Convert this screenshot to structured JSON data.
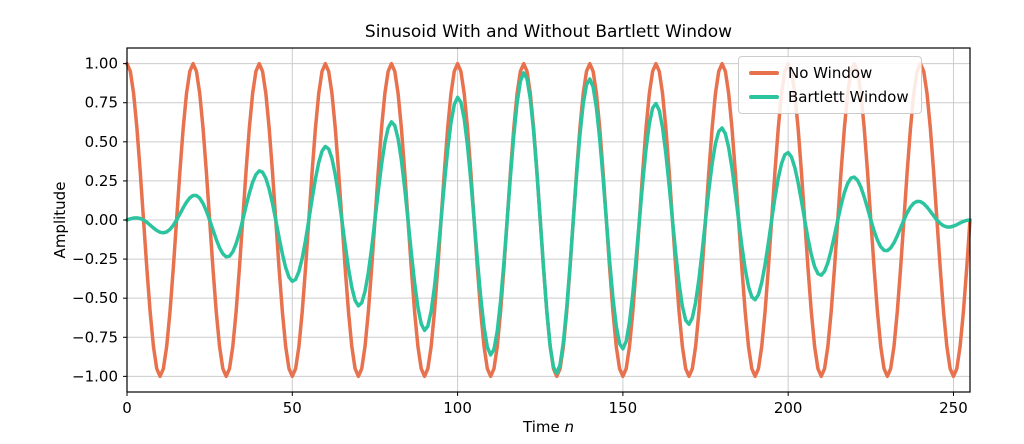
{
  "chart_data": {
    "type": "line",
    "title": "Sinusoid With and Without Bartlett Window",
    "xlabel": "Time n",
    "xlabel_prefix": "Time ",
    "xlabel_var": "n",
    "ylabel": "Amplitude",
    "xlim": [
      0,
      255
    ],
    "ylim": [
      -1.1,
      1.1
    ],
    "xticks": [
      0,
      50,
      100,
      150,
      200,
      250
    ],
    "xtick_labels": [
      "0",
      "50",
      "100",
      "150",
      "200",
      "250"
    ],
    "yticks": [
      -1.0,
      -0.75,
      -0.5,
      -0.25,
      0.0,
      0.25,
      0.5,
      0.75,
      1.0
    ],
    "ytick_labels": [
      "−1.00",
      "−0.75",
      "−0.50",
      "−0.25",
      "0.00",
      "0.25",
      "0.50",
      "0.75",
      "1.00"
    ],
    "grid": true,
    "grid_color": "#cccccc",
    "legend": {
      "position": "upper right",
      "entries": [
        "No Window",
        "Bartlett Window"
      ]
    },
    "n_points": 256,
    "signal": "cos(2*pi*n/20)",
    "line_width": 3.5,
    "series": [
      {
        "name": "No Window",
        "color": "#E8714E",
        "amplitude": 1.0,
        "period": 20,
        "window": "none"
      },
      {
        "name": "Bartlett Window",
        "color": "#2BC49E",
        "amplitude": 1.0,
        "period": 20,
        "window": "bartlett"
      }
    ]
  }
}
